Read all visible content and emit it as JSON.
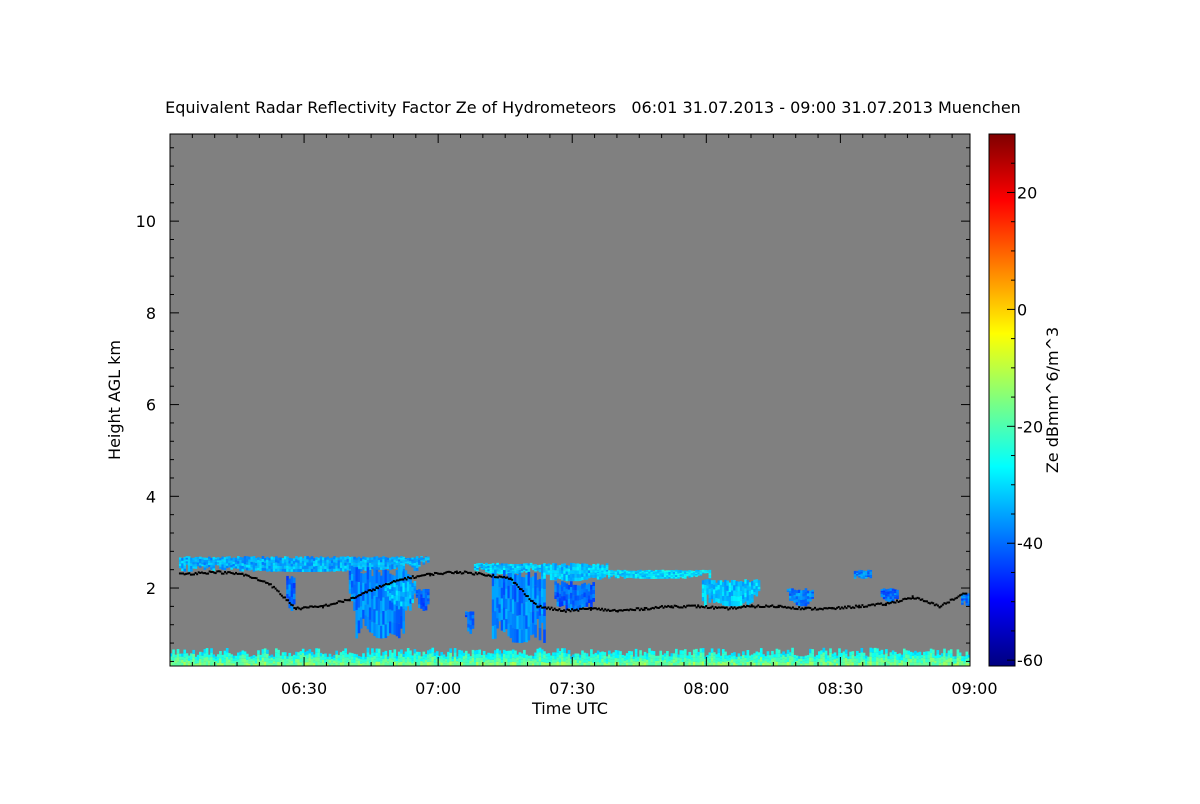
{
  "chart_data": {
    "type": "heatmap",
    "title": "Equivalent Radar Reflectivity Factor Ze of Hydrometeors   06:01 31.07.2013 - 09:00 31.07.2013 Muenchen",
    "xlabel": "Time UTC",
    "ylabel": "Height AGL km",
    "colorbar_label": "Ze dBmm^6/m^3",
    "xlim": [
      "06:01",
      "09:00"
    ],
    "ylim": [
      0.3,
      11.9
    ],
    "clim": [
      -61,
      30
    ],
    "x_ticks": [
      {
        "label": "06:30",
        "minutes": 30
      },
      {
        "label": "07:00",
        "minutes": 60
      },
      {
        "label": "07:30",
        "minutes": 90
      },
      {
        "label": "08:00",
        "minutes": 120
      },
      {
        "label": "08:30",
        "minutes": 150
      },
      {
        "label": "09:00",
        "minutes": 180
      }
    ],
    "y_ticks": [
      {
        "label": "2",
        "value": 2
      },
      {
        "label": "4",
        "value": 4
      },
      {
        "label": "6",
        "value": 6
      },
      {
        "label": "8",
        "value": 8
      },
      {
        "label": "10",
        "value": 10
      }
    ],
    "colorbar_ticks": [
      {
        "label": "-60",
        "value": -60
      },
      {
        "label": "-40",
        "value": -40
      },
      {
        "label": "-20",
        "value": -20
      },
      {
        "label": "0",
        "value": 0
      },
      {
        "label": "20",
        "value": 20
      }
    ],
    "background_color": "#808080",
    "colormap": [
      "#00007f",
      "#0000ff",
      "#007fff",
      "#00ffff",
      "#7fff7f",
      "#ffff00",
      "#ff7f00",
      "#ff0000",
      "#7f0000"
    ],
    "cloud_regions": [
      {
        "t0": 2,
        "t1": 58,
        "h0": 2.35,
        "h1": 2.7,
        "ze": -34
      },
      {
        "t0": 40,
        "t1": 54,
        "h0": 0.9,
        "h1": 2.5,
        "ze": -38
      },
      {
        "t0": 48,
        "t1": 55,
        "h0": 1.6,
        "h1": 2.2,
        "ze": -33
      },
      {
        "t0": 26,
        "t1": 28,
        "h0": 1.5,
        "h1": 2.3,
        "ze": -40
      },
      {
        "t0": 55,
        "t1": 58,
        "h0": 1.5,
        "h1": 2.0,
        "ze": -40
      },
      {
        "t0": 68,
        "t1": 82,
        "h0": 2.3,
        "h1": 2.55,
        "ze": -32
      },
      {
        "t0": 72,
        "t1": 84,
        "h0": 0.8,
        "h1": 2.4,
        "ze": -38
      },
      {
        "t0": 82,
        "t1": 98,
        "h0": 2.15,
        "h1": 2.55,
        "ze": -32
      },
      {
        "t0": 86,
        "t1": 95,
        "h0": 1.5,
        "h1": 2.15,
        "ze": -40
      },
      {
        "t0": 95,
        "t1": 121,
        "h0": 2.2,
        "h1": 2.4,
        "ze": -30
      },
      {
        "t0": 66,
        "t1": 68,
        "h0": 1.0,
        "h1": 1.5,
        "ze": -40
      },
      {
        "t0": 119,
        "t1": 132,
        "h0": 1.6,
        "h1": 2.2,
        "ze": -32
      },
      {
        "t0": 138,
        "t1": 144,
        "h0": 1.6,
        "h1": 2.0,
        "ze": -38
      },
      {
        "t0": 153,
        "t1": 157,
        "h0": 2.2,
        "h1": 2.4,
        "ze": -38
      },
      {
        "t0": 159,
        "t1": 163,
        "h0": 1.7,
        "h1": 2.0,
        "ze": -40
      },
      {
        "t0": 177,
        "t1": 180,
        "h0": 1.6,
        "h1": 1.9,
        "ze": -40
      },
      {
        "t0": 0,
        "t1": 180,
        "h0": 0.3,
        "h1": 0.7,
        "ze": -30,
        "kind": "ground"
      }
    ],
    "cloud_base": {
      "minutes": [
        2,
        10,
        16,
        22,
        28,
        34,
        40,
        46,
        52,
        58,
        64,
        70,
        76,
        82,
        88,
        94,
        100,
        106,
        112,
        118,
        124,
        130,
        136,
        142,
        148,
        154,
        160,
        166,
        172,
        178
      ],
      "heights": [
        2.3,
        2.35,
        2.3,
        2.1,
        1.55,
        1.6,
        1.75,
        2.0,
        2.2,
        2.3,
        2.35,
        2.3,
        2.2,
        1.6,
        1.5,
        1.55,
        1.5,
        1.55,
        1.6,
        1.6,
        1.55,
        1.6,
        1.6,
        1.55,
        1.55,
        1.6,
        1.65,
        1.8,
        1.6,
        1.9
      ]
    }
  }
}
